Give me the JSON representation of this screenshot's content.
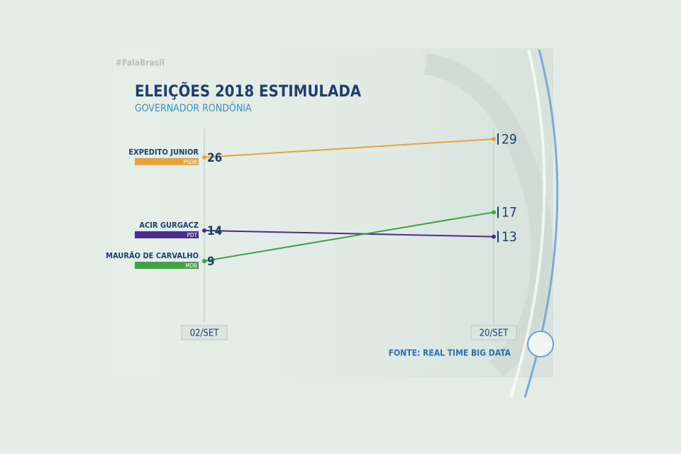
{
  "watermark": "#FalaBrasil",
  "chart_data": {
    "type": "line",
    "title": "ELEIÇÕES 2018 ESTIMULADA",
    "subtitle": "GOVERNADOR RONDÔNIA",
    "categories": [
      "02/SET",
      "20/SET"
    ],
    "series": [
      {
        "name": "EXPEDITO JUNIOR",
        "party": "PSDB",
        "color": "#e9a23a",
        "values": [
          26,
          29
        ]
      },
      {
        "name": "ACIR GURGACZ",
        "party": "PDT",
        "color": "#4b2d8c",
        "values": [
          14,
          13
        ]
      },
      {
        "name": "MAURÃO DE CARVALHO",
        "party": "MDB",
        "color": "#3fa346",
        "values": [
          9,
          17
        ]
      }
    ],
    "source": "FONTE: REAL TIME BIG DATA"
  }
}
